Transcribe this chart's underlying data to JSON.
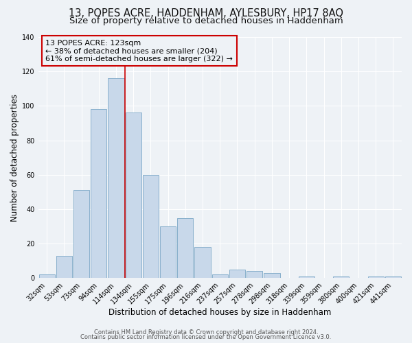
{
  "title1": "13, POPES ACRE, HADDENHAM, AYLESBURY, HP17 8AQ",
  "title2": "Size of property relative to detached houses in Haddenham",
  "xlabel": "Distribution of detached houses by size in Haddenham",
  "ylabel": "Number of detached properties",
  "bar_labels": [
    "32sqm",
    "53sqm",
    "73sqm",
    "94sqm",
    "114sqm",
    "134sqm",
    "155sqm",
    "175sqm",
    "196sqm",
    "216sqm",
    "237sqm",
    "257sqm",
    "278sqm",
    "298sqm",
    "318sqm",
    "339sqm",
    "359sqm",
    "380sqm",
    "400sqm",
    "421sqm",
    "441sqm"
  ],
  "bar_values": [
    2,
    13,
    51,
    98,
    116,
    96,
    60,
    30,
    35,
    18,
    2,
    5,
    4,
    3,
    0,
    1,
    0,
    1,
    0,
    1,
    1
  ],
  "bar_color": "#c8d8ea",
  "bar_edgecolor": "#89b0cc",
  "vline_color": "#cc0000",
  "annotation_text": "13 POPES ACRE: 123sqm\n← 38% of detached houses are smaller (204)\n61% of semi-detached houses are larger (322) →",
  "annotation_box_edgecolor": "#cc0000",
  "ylim": [
    0,
    140
  ],
  "yticks": [
    0,
    20,
    40,
    60,
    80,
    100,
    120,
    140
  ],
  "footer1": "Contains HM Land Registry data © Crown copyright and database right 2024.",
  "footer2": "Contains public sector information licensed under the Open Government Licence v3.0.",
  "background_color": "#eef2f6",
  "grid_color": "#ffffff",
  "title1_fontsize": 10.5,
  "title2_fontsize": 9.5,
  "xlabel_fontsize": 8.5,
  "ylabel_fontsize": 8.5,
  "tick_fontsize": 7,
  "annotation_fontsize": 8,
  "footer_fontsize": 6
}
